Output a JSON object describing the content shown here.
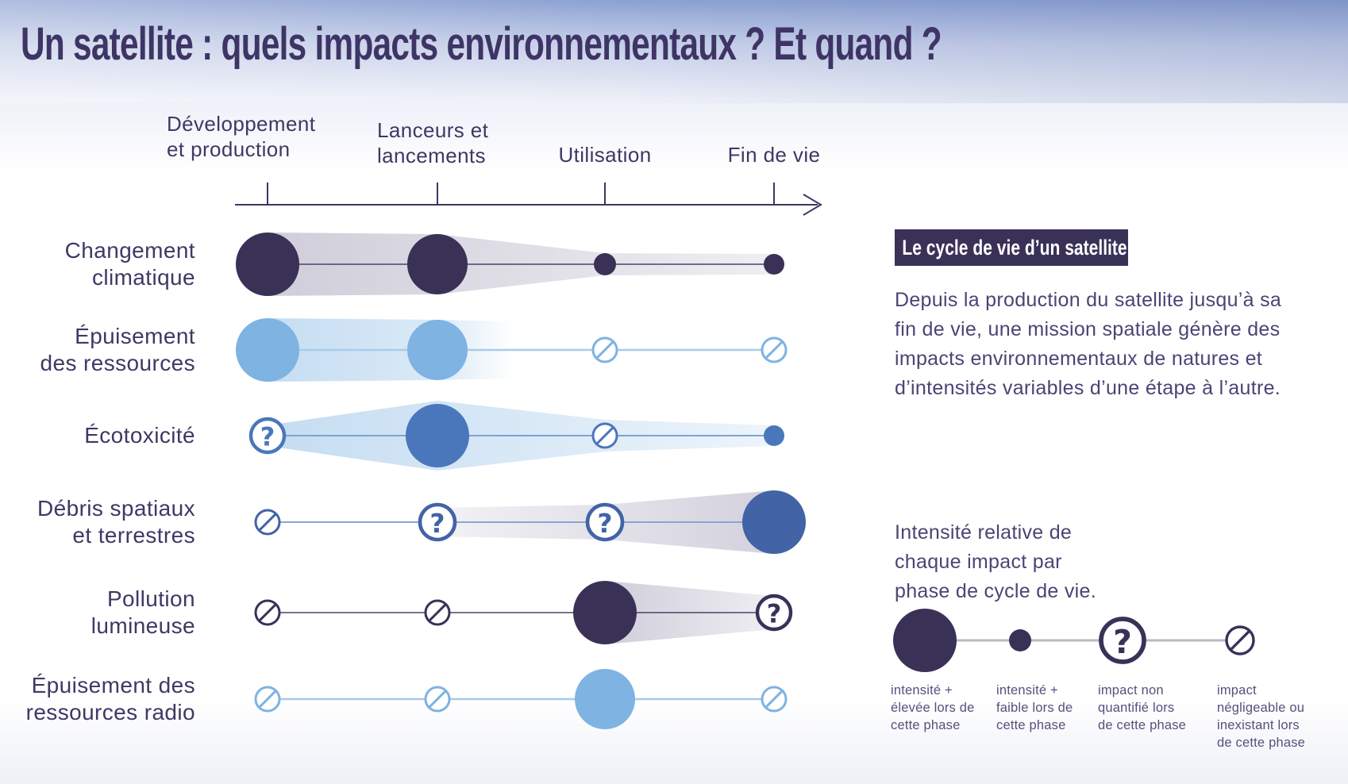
{
  "title": "Un satellite : quels impacts environnementaux ? Et quand ?",
  "chart_data": {
    "type": "matrix-timeline",
    "phases": [
      {
        "label": "Développement\net production"
      },
      {
        "label": "Lanceurs et\nlancements"
      },
      {
        "label": "Utilisation"
      },
      {
        "label": "Fin de vie"
      }
    ],
    "impacts": [
      {
        "label": "Changement\nclimatique",
        "theme": "navy",
        "cells": [
          {
            "type": "high",
            "r": 40
          },
          {
            "type": "high",
            "r": 38
          },
          {
            "type": "low",
            "r": 14
          },
          {
            "type": "low",
            "r": 13
          }
        ],
        "band": {
          "from": 0,
          "to": 3,
          "halfwidths": [
            40,
            38,
            14,
            13
          ],
          "fill": "navyLR"
        }
      },
      {
        "label": "Épuisement\ndes ressources",
        "theme": "lightblue",
        "cells": [
          {
            "type": "high",
            "r": 40
          },
          {
            "type": "high",
            "r": 38
          },
          {
            "type": "none",
            "r": 15
          },
          {
            "type": "none",
            "r": 15
          }
        ],
        "band": {
          "from": 0,
          "to": 1,
          "halfwidths": [
            40,
            38
          ],
          "fill": "blueFade",
          "fade_tail": 95
        }
      },
      {
        "label": "Écotoxicité",
        "theme": "blue",
        "cells": [
          {
            "type": "unq",
            "r": 21
          },
          {
            "type": "high",
            "r": 40
          },
          {
            "type": "none",
            "r": 15
          },
          {
            "type": "low",
            "r": 13
          }
        ],
        "band": {
          "from": 0,
          "to": 3,
          "halfwidths": [
            13,
            44,
            20,
            13
          ],
          "fill": "blueLR"
        }
      },
      {
        "label": "Débris spatiaux\net terrestres",
        "theme": "deepblue",
        "cells": [
          {
            "type": "none",
            "r": 15
          },
          {
            "type": "unq",
            "r": 22
          },
          {
            "type": "unq",
            "r": 22
          },
          {
            "type": "high",
            "r": 40
          }
        ],
        "band": {
          "from": 1,
          "to": 3,
          "halfwidths": [
            18,
            22,
            40
          ],
          "fill": "navyRL"
        }
      },
      {
        "label": "Pollution\nlumineuse",
        "theme": "navy",
        "cells": [
          {
            "type": "none",
            "r": 15
          },
          {
            "type": "none",
            "r": 15
          },
          {
            "type": "high",
            "r": 40
          },
          {
            "type": "unq",
            "r": 21
          }
        ],
        "band": {
          "from": 2,
          "to": 3,
          "halfwidths": [
            40,
            21
          ],
          "fill": "navyLR"
        }
      },
      {
        "label": "Épuisement des\nressources radio",
        "theme": "lightblue",
        "cells": [
          {
            "type": "none",
            "r": 15
          },
          {
            "type": "none",
            "r": 15
          },
          {
            "type": "high",
            "r": 38
          },
          {
            "type": "none",
            "r": 15
          }
        ],
        "band": null
      }
    ]
  },
  "side_panel": {
    "badge": "Le cycle de vie d’un satellite",
    "paragraph": "Depuis la production du satellite jusqu’à sa fin de vie, une mission spatiale génère des impacts environnementaux de natures et d’intensités variables d’une étape à l’autre.",
    "legend_intro": "Intensité relative de\nchaque impact par\nphase de cycle de vie."
  },
  "legend": {
    "items": [
      {
        "type": "high",
        "r": 40,
        "caption": "intensité +\nélevée lors de\ncette phase"
      },
      {
        "type": "low",
        "r": 14,
        "caption": "intensité +\nfaible lors de\ncette phase"
      },
      {
        "type": "unq",
        "r": 27,
        "caption": "impact non\nquantifié lors\nde cette phase"
      },
      {
        "type": "none",
        "r": 17,
        "caption": "impact\nnégligeable ou\ninexistant lors\nde cette phase"
      }
    ]
  },
  "colors": {
    "navy": "#3a3157",
    "lightblue": "#7eb3e2",
    "blue": "#4a77bc",
    "deepblue": "#4263a6",
    "band_navy": "#4a4070",
    "band_blue": "#7eb3e2",
    "axis": "#3d3663",
    "legend_line": "#b9b9c2",
    "title_text": "#3e3566",
    "body_text": "#4b4474",
    "caption_text": "#56507c",
    "badge_bg": "#3a3157",
    "badge_text": "#ffffff"
  }
}
